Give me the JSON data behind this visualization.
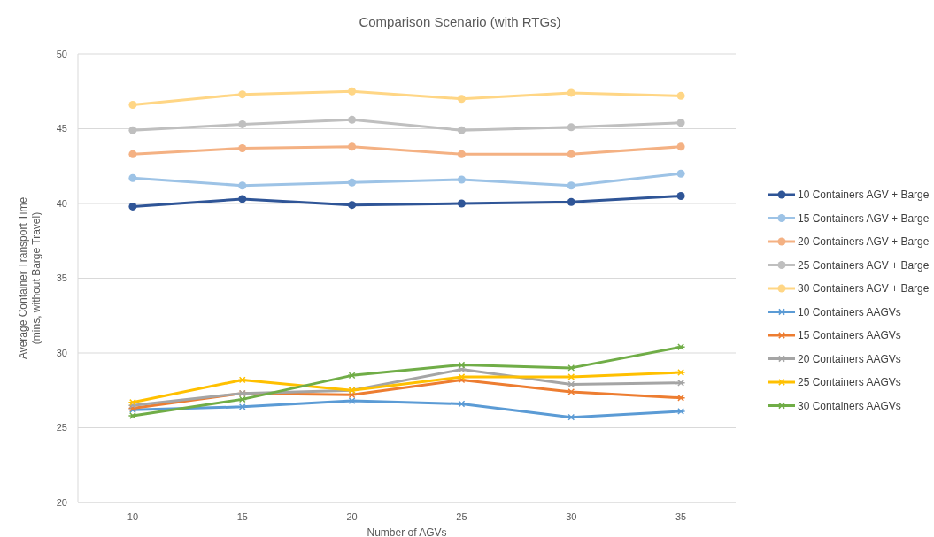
{
  "chart_data": {
    "type": "line",
    "title": "Comparison Scenario (with RTGs)",
    "xlabel": "Number of AGVs",
    "ylabel": "Average Container Transport Time (mins, without Barge Travel)",
    "categories": [
      "10",
      "15",
      "20",
      "25",
      "30",
      "35"
    ],
    "ylim": [
      20,
      50
    ],
    "yticks": [
      20,
      25,
      30,
      35,
      40,
      45,
      50
    ],
    "grid": "y",
    "legend": "right",
    "series": [
      {
        "name": "10 Containers AGV + Barge",
        "color": "#2f5597",
        "marker": "circle",
        "values": [
          39.8,
          40.3,
          39.9,
          40.0,
          40.1,
          40.5
        ]
      },
      {
        "name": "15 Containers AGV + Barge",
        "color": "#9dc3e6",
        "marker": "circle",
        "values": [
          41.7,
          41.2,
          41.4,
          41.6,
          41.2,
          42.0
        ]
      },
      {
        "name": "20 Containers AGV + Barge",
        "color": "#f4b183",
        "marker": "circle",
        "values": [
          43.3,
          43.7,
          43.8,
          43.3,
          43.3,
          43.8
        ]
      },
      {
        "name": "25 Containers AGV + Barge",
        "color": "#bfbfbf",
        "marker": "circle",
        "values": [
          44.9,
          45.3,
          45.6,
          44.9,
          45.1,
          45.4
        ]
      },
      {
        "name": "30 Containers AGV + Barge",
        "color": "#ffd685",
        "marker": "circle",
        "values": [
          46.6,
          47.3,
          47.5,
          47.0,
          47.4,
          47.2
        ]
      },
      {
        "name": "10 Containers AAGVs",
        "color": "#5b9bd5",
        "marker": "cross",
        "values": [
          26.2,
          26.4,
          26.8,
          26.6,
          25.7,
          26.1
        ]
      },
      {
        "name": "15 Containers AAGVs",
        "color": "#ed7d31",
        "marker": "cross",
        "values": [
          26.3,
          27.3,
          27.2,
          28.2,
          27.4,
          27.0
        ]
      },
      {
        "name": "20 Containers AAGVs",
        "color": "#a5a5a5",
        "marker": "cross",
        "values": [
          26.5,
          27.3,
          27.5,
          28.9,
          27.9,
          28.0
        ]
      },
      {
        "name": "25 Containers AAGVs",
        "color": "#ffc000",
        "marker": "cross",
        "values": [
          26.7,
          28.2,
          27.5,
          28.4,
          28.4,
          28.7
        ]
      },
      {
        "name": "30 Containers AAGVs",
        "color": "#70ad47",
        "marker": "cross",
        "values": [
          25.8,
          26.9,
          28.5,
          29.2,
          29.0,
          30.4
        ]
      }
    ]
  }
}
